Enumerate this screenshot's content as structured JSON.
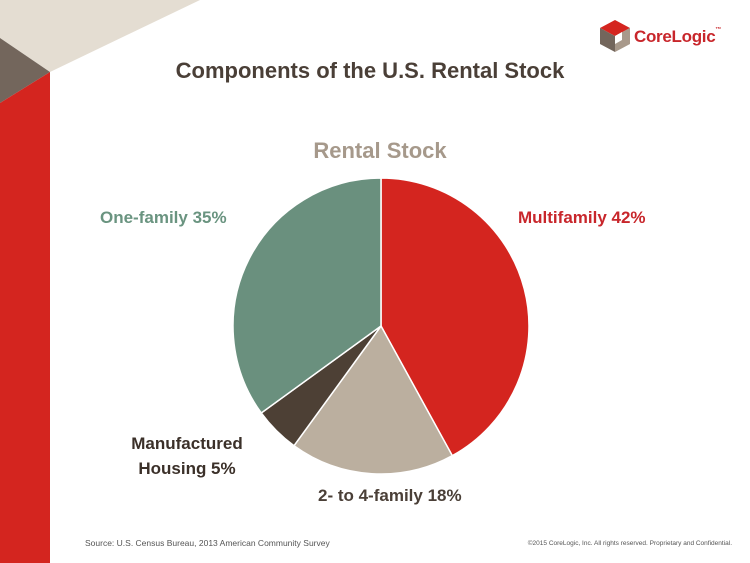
{
  "colors": {
    "brand_red": "#d4251f",
    "slide_beige": "#e4ddd2",
    "slide_brown": "#73665c"
  },
  "brand": {
    "name": "CoreLogic"
  },
  "chart_data": {
    "type": "pie",
    "title": "Components of the U.S. Rental Stock",
    "subtitle": "Rental Stock",
    "slices": [
      {
        "name": "Multifamily",
        "value": 42,
        "label": "Multifamily 42%",
        "color": "#d4251f"
      },
      {
        "name": "2- to 4-family",
        "value": 18,
        "label": "2- to 4-family 18%",
        "color": "#bbaf9f"
      },
      {
        "name": "Manufactured Housing",
        "value": 5,
        "label": "Manufactured Housing 5%",
        "color": "#4d4035"
      },
      {
        "name": "One-family",
        "value": 35,
        "label": "One-family 35%",
        "color": "#6a907e"
      }
    ]
  },
  "labels": {
    "one_family": "One-family 35%",
    "multifamily": "Multifamily 42%",
    "manufactured_line1": "Manufactured",
    "manufactured_line2": "Housing 5%",
    "two_to_four": "2- to 4-family 18%"
  },
  "footer": {
    "source": "Source: U.S. Census Bureau, 2013 American Community Survey",
    "copyright": "©2015 CoreLogic, Inc. All rights reserved. Proprietary and Confidential."
  }
}
